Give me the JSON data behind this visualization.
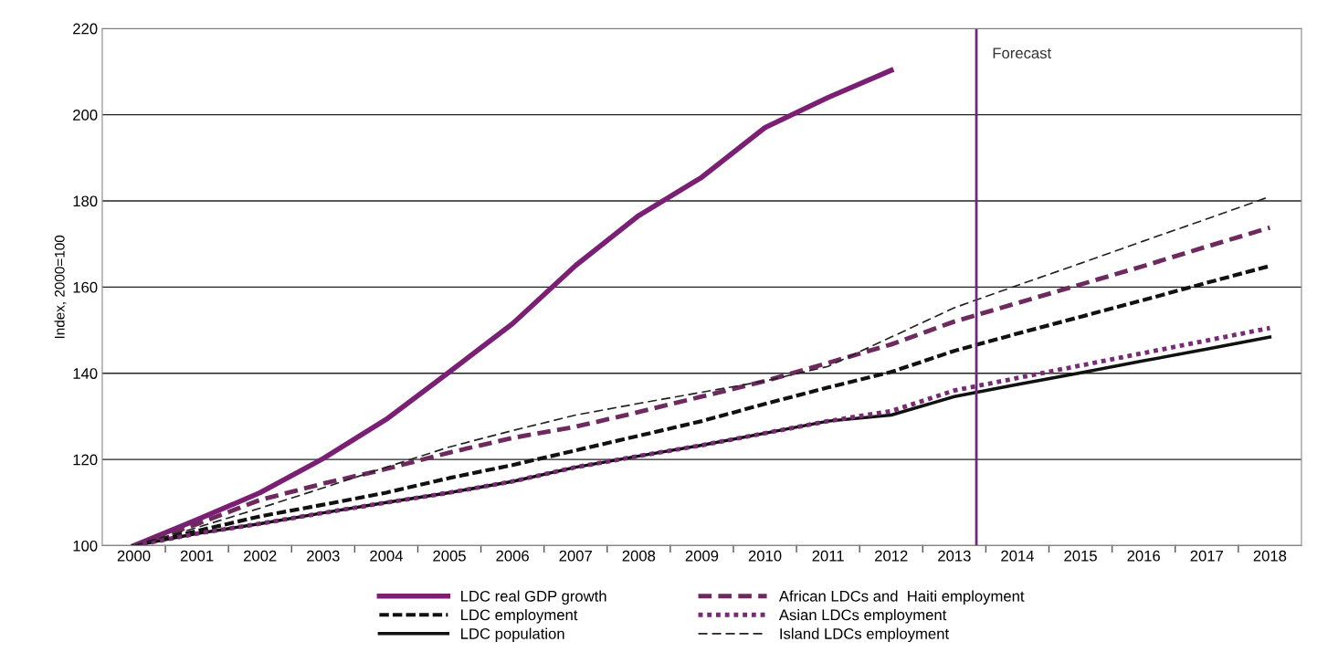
{
  "chart_data": {
    "type": "line",
    "ylabel": "Index, 2000=100",
    "x": [
      2000,
      2001,
      2002,
      2003,
      2004,
      2005,
      2006,
      2007,
      2008,
      2009,
      2010,
      2011,
      2012,
      2013,
      2014,
      2015,
      2016,
      2017,
      2018
    ],
    "xlim": [
      1999.5,
      2018.5
    ],
    "xticks": [
      2000,
      2001,
      2002,
      2003,
      2004,
      2005,
      2006,
      2007,
      2008,
      2009,
      2010,
      2011,
      2012,
      2013,
      2014,
      2015,
      2016,
      2017,
      2018
    ],
    "ylim": [
      100,
      220
    ],
    "yticks": [
      100,
      120,
      140,
      160,
      180,
      200,
      220
    ],
    "grid": "y",
    "legend": "bottom",
    "series": [
      {
        "name": "LDC real GDP growth",
        "color": "#7a1f74",
        "line_style": "solid",
        "values": [
          100,
          106,
          112.3,
          120.2,
          129.3,
          140.3,
          151.5,
          165,
          176.6,
          185.5,
          197,
          204,
          210.3,
          null,
          null,
          null,
          null,
          null,
          null
        ]
      },
      {
        "name": "LDC employment",
        "color": "#111111",
        "line_style": "dashed",
        "values": [
          100,
          103.4,
          106.8,
          109.5,
          112.3,
          115.7,
          118.7,
          122.1,
          125.5,
          128.9,
          132.9,
          136.7,
          140.3,
          145.2,
          149.2,
          153.1,
          157,
          161,
          164.9
        ]
      },
      {
        "name": "LDC population",
        "color": "#111111",
        "line_style": "solid",
        "values": [
          100,
          102.8,
          105.1,
          107.6,
          110,
          112.3,
          114.9,
          118.2,
          120.8,
          123.3,
          126.1,
          128.9,
          130.3,
          134.6,
          137.4,
          140.1,
          142.9,
          145.6,
          148.4
        ]
      },
      {
        "name": "African LDCs and  Haiti employment",
        "color": "#6e2a5e",
        "line_style": "dashed",
        "values": [
          100,
          105,
          110.6,
          114.4,
          117.8,
          121.6,
          125,
          127.6,
          131,
          134.6,
          138.2,
          142.4,
          146.7,
          152,
          156.3,
          160.6,
          164.9,
          169.4,
          173.8
        ]
      },
      {
        "name": "Asian LDCs employment",
        "color": "#7a2a74",
        "line_style": "dotted",
        "values": [
          100,
          102.8,
          105.1,
          107.6,
          110,
          112.3,
          114.9,
          118.2,
          120.8,
          123.3,
          126.1,
          128.9,
          131.2,
          136,
          138.9,
          141.8,
          144.7,
          147.6,
          150.5
        ]
      },
      {
        "name": "Island LDCs employment",
        "color": "#222222",
        "line_style": "dashed",
        "values": [
          100,
          104.2,
          108.7,
          113.4,
          118.2,
          122.9,
          126.7,
          130.3,
          133,
          135.6,
          138.2,
          141.6,
          148.4,
          155.2,
          160.4,
          165.5,
          170.7,
          175.8,
          181
        ]
      }
    ],
    "ref_lines": [
      {
        "axis": "x",
        "value": 2013.35,
        "label": "Forecast",
        "color": "#6a2a7a"
      }
    ]
  }
}
